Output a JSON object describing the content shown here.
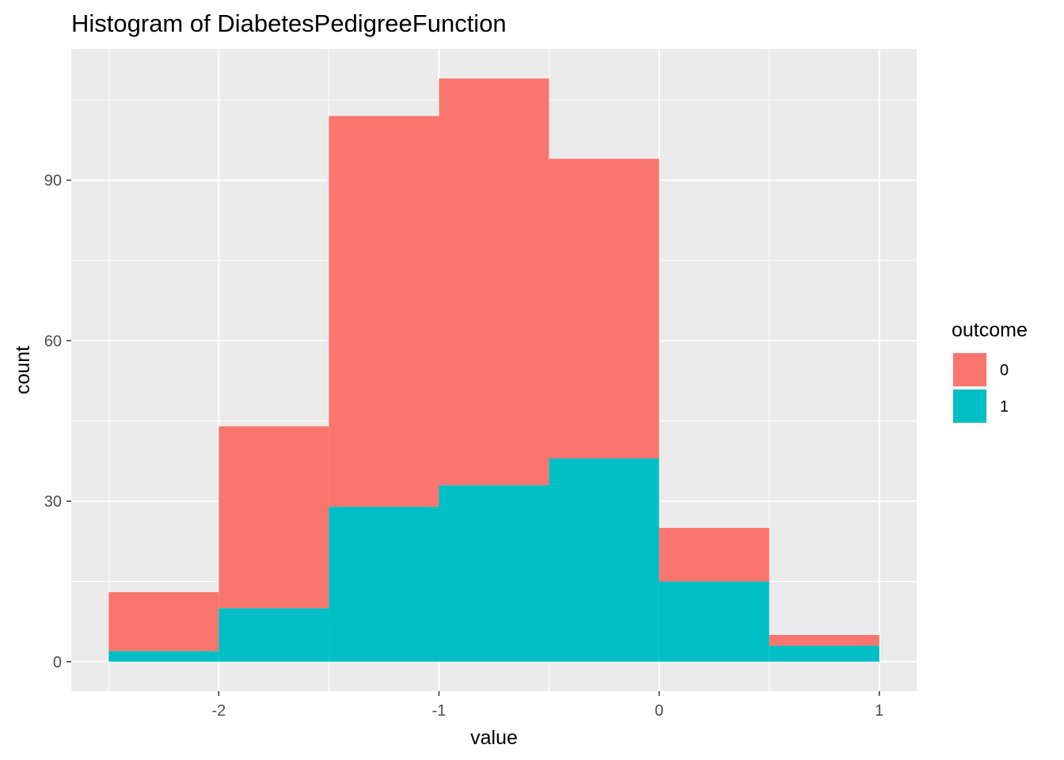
{
  "chart_data": {
    "type": "bar",
    "stacked": true,
    "histogram": true,
    "title": "Histogram of DiabetesPedigreeFunction",
    "xlabel": "value",
    "ylabel": "count",
    "bin_edges": [
      -2.5,
      -2.0,
      -1.5,
      -1.0,
      -0.5,
      0.0,
      0.5,
      1.0
    ],
    "series": [
      {
        "name": "1",
        "color": "#00BFC4",
        "values": [
          2,
          10,
          29,
          33,
          38,
          15,
          3
        ]
      },
      {
        "name": "0",
        "color": "#F8766D",
        "values": [
          11,
          34,
          73,
          76,
          56,
          10,
          2
        ]
      }
    ],
    "totals": [
      13,
      44,
      102,
      109,
      94,
      25,
      5
    ],
    "xlim": [
      -2.67,
      1.17
    ],
    "ylim": [
      -5.5,
      114.5
    ],
    "x_ticks": [
      -2,
      -1,
      0,
      1
    ],
    "x_tick_labels": [
      "-2",
      "-1",
      "0",
      "1"
    ],
    "y_ticks": [
      0,
      30,
      60,
      90
    ],
    "y_tick_labels": [
      "0",
      "30",
      "60",
      "90"
    ],
    "grid": true,
    "panel_background": "#EBEBEB",
    "grid_color": "#FFFFFF",
    "legend": {
      "title": "outcome",
      "position": "right",
      "entries": [
        {
          "label": "0",
          "color": "#F8766D"
        },
        {
          "label": "1",
          "color": "#00BFC4"
        }
      ]
    }
  }
}
